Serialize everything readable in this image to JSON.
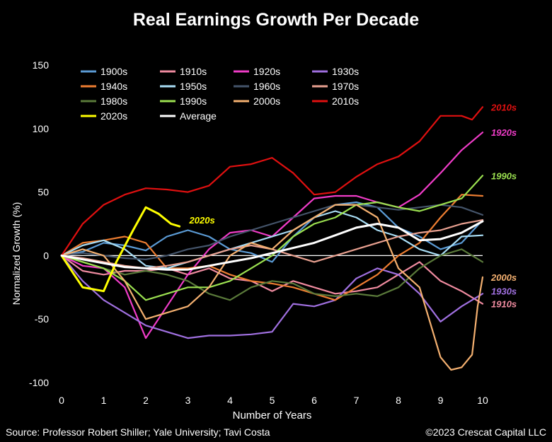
{
  "page": {
    "title": "Real Earnings Growth Per Decade",
    "source": "Source: Professor Robert Shiller; Yale University; Tavi Costa",
    "copyright": "©2023 Crescat Capital LLC"
  },
  "chart_data": {
    "type": "line",
    "title": "Real Earnings Growth Per Decade",
    "xlabel": "Number of Years",
    "ylabel": "Normalized Growth (%)",
    "xlim": [
      0,
      10
    ],
    "ylim": [
      -100,
      150
    ],
    "xticks": [
      0,
      1,
      2,
      3,
      4,
      5,
      6,
      7,
      8,
      9,
      10
    ],
    "yticks": [
      -100,
      -50,
      0,
      50,
      100,
      150
    ],
    "grid": false,
    "legend": "top-left",
    "end_labels": [
      {
        "text": "2010s",
        "series": "2010s",
        "y": 117
      },
      {
        "text": "1920s",
        "series": "1920s",
        "y": 97
      },
      {
        "text": "1990s",
        "series": "1990s",
        "y": 63
      },
      {
        "text": "2020s",
        "series": "2020s",
        "y": 28,
        "x": 2.9
      },
      {
        "text": "2000s",
        "series": "2000s",
        "y": -17
      },
      {
        "text": "1930s",
        "series": "1930s",
        "y": -28
      },
      {
        "text": "1910s",
        "series": "1910s",
        "y": -38
      }
    ],
    "series": [
      {
        "name": "1900s",
        "color": "#5B9BD5",
        "points": [
          [
            0,
            0
          ],
          [
            0.5,
            3
          ],
          [
            1,
            10
          ],
          [
            1.5,
            8
          ],
          [
            2,
            4
          ],
          [
            2.5,
            15
          ],
          [
            3,
            20
          ],
          [
            3.5,
            15
          ],
          [
            4,
            5
          ],
          [
            4.5,
            2
          ],
          [
            5,
            -5
          ],
          [
            5.5,
            15
          ],
          [
            6,
            30
          ],
          [
            6.5,
            40
          ],
          [
            7,
            42
          ],
          [
            7.5,
            38
          ],
          [
            8,
            22
          ],
          [
            8.5,
            15
          ],
          [
            9,
            5
          ],
          [
            9.5,
            10
          ],
          [
            10,
            28
          ]
        ]
      },
      {
        "name": "1910s",
        "color": "#F08BA0",
        "points": [
          [
            0,
            0
          ],
          [
            0.5,
            -12
          ],
          [
            1,
            -15
          ],
          [
            1.5,
            -12
          ],
          [
            2,
            -12
          ],
          [
            2.5,
            -10
          ],
          [
            3,
            -15
          ],
          [
            3.5,
            -10
          ],
          [
            4,
            -18
          ],
          [
            4.5,
            -20
          ],
          [
            5,
            -28
          ],
          [
            5.5,
            -20
          ],
          [
            6,
            -25
          ],
          [
            6.5,
            -30
          ],
          [
            7,
            -28
          ],
          [
            7.5,
            -25
          ],
          [
            8,
            -15
          ],
          [
            8.5,
            -5
          ],
          [
            9,
            -20
          ],
          [
            9.5,
            -28
          ],
          [
            10,
            -38
          ]
        ]
      },
      {
        "name": "1920s",
        "color": "#F03CC8",
        "points": [
          [
            0,
            0
          ],
          [
            0.5,
            -8
          ],
          [
            1,
            -10
          ],
          [
            1.5,
            -25
          ],
          [
            2,
            -65
          ],
          [
            2.5,
            -40
          ],
          [
            3,
            -15
          ],
          [
            3.5,
            5
          ],
          [
            4,
            18
          ],
          [
            4.5,
            20
          ],
          [
            5,
            15
          ],
          [
            5.5,
            30
          ],
          [
            6,
            45
          ],
          [
            6.5,
            47
          ],
          [
            7,
            47
          ],
          [
            7.5,
            42
          ],
          [
            8,
            38
          ],
          [
            8.5,
            48
          ],
          [
            9,
            65
          ],
          [
            9.5,
            83
          ],
          [
            10,
            97
          ]
        ]
      },
      {
        "name": "1930s",
        "color": "#A070E0",
        "points": [
          [
            0,
            0
          ],
          [
            0.5,
            -20
          ],
          [
            1,
            -35
          ],
          [
            1.5,
            -45
          ],
          [
            2,
            -55
          ],
          [
            2.5,
            -60
          ],
          [
            3,
            -65
          ],
          [
            3.5,
            -63
          ],
          [
            4,
            -63
          ],
          [
            4.5,
            -62
          ],
          [
            5,
            -60
          ],
          [
            5.5,
            -38
          ],
          [
            6,
            -40
          ],
          [
            6.5,
            -35
          ],
          [
            7,
            -18
          ],
          [
            7.5,
            -10
          ],
          [
            8,
            -15
          ],
          [
            8.5,
            -30
          ],
          [
            9,
            -52
          ],
          [
            9.5,
            -40
          ],
          [
            10,
            -30
          ]
        ]
      },
      {
        "name": "1940s",
        "color": "#ED7D31",
        "points": [
          [
            0,
            0
          ],
          [
            0.5,
            10
          ],
          [
            1,
            12
          ],
          [
            1.5,
            15
          ],
          [
            2,
            10
          ],
          [
            2.5,
            -10
          ],
          [
            3,
            -10
          ],
          [
            3.5,
            -8
          ],
          [
            4,
            -15
          ],
          [
            4.5,
            -20
          ],
          [
            5,
            -22
          ],
          [
            5.5,
            -25
          ],
          [
            6,
            -30
          ],
          [
            6.5,
            -35
          ],
          [
            7,
            -25
          ],
          [
            7.5,
            -15
          ],
          [
            8,
            0
          ],
          [
            8.5,
            10
          ],
          [
            9,
            30
          ],
          [
            9.5,
            48
          ],
          [
            10,
            47
          ]
        ]
      },
      {
        "name": "1950s",
        "color": "#A8DDF5",
        "points": [
          [
            0,
            0
          ],
          [
            0.5,
            8
          ],
          [
            1,
            12
          ],
          [
            1.5,
            5
          ],
          [
            2,
            -8
          ],
          [
            2.5,
            -10
          ],
          [
            3,
            -5
          ],
          [
            3.5,
            0
          ],
          [
            4,
            5
          ],
          [
            4.5,
            10
          ],
          [
            5,
            15
          ],
          [
            5.5,
            20
          ],
          [
            6,
            30
          ],
          [
            6.5,
            35
          ],
          [
            7,
            30
          ],
          [
            7.5,
            20
          ],
          [
            8,
            15
          ],
          [
            8.5,
            5
          ],
          [
            9,
            0
          ],
          [
            9.5,
            15
          ],
          [
            10,
            16
          ]
        ]
      },
      {
        "name": "1960s",
        "color": "#44546A",
        "points": [
          [
            0,
            0
          ],
          [
            0.5,
            2
          ],
          [
            1,
            0
          ],
          [
            1.5,
            -2
          ],
          [
            2,
            -3
          ],
          [
            2.5,
            0
          ],
          [
            3,
            5
          ],
          [
            3.5,
            8
          ],
          [
            4,
            15
          ],
          [
            4.5,
            20
          ],
          [
            5,
            25
          ],
          [
            5.5,
            30
          ],
          [
            6,
            35
          ],
          [
            6.5,
            40
          ],
          [
            7,
            40
          ],
          [
            7.5,
            38
          ],
          [
            8,
            36
          ],
          [
            8.5,
            38
          ],
          [
            9,
            40
          ],
          [
            9.5,
            38
          ],
          [
            10,
            32
          ]
        ]
      },
      {
        "name": "1970s",
        "color": "#E8A090",
        "points": [
          [
            0,
            0
          ],
          [
            0.5,
            -2
          ],
          [
            1,
            -5
          ],
          [
            1.5,
            -8
          ],
          [
            2,
            -10
          ],
          [
            2.5,
            -8
          ],
          [
            3,
            -5
          ],
          [
            3.5,
            0
          ],
          [
            4,
            5
          ],
          [
            4.5,
            8
          ],
          [
            5,
            5
          ],
          [
            5.5,
            0
          ],
          [
            6,
            -5
          ],
          [
            6.5,
            0
          ],
          [
            7,
            5
          ],
          [
            7.5,
            10
          ],
          [
            8,
            15
          ],
          [
            8.5,
            18
          ],
          [
            9,
            20
          ],
          [
            9.5,
            25
          ],
          [
            10,
            28
          ]
        ]
      },
      {
        "name": "1980s",
        "color": "#5A7A3A",
        "points": [
          [
            0,
            0
          ],
          [
            0.5,
            -5
          ],
          [
            1,
            -10
          ],
          [
            1.5,
            -15
          ],
          [
            2,
            -12
          ],
          [
            2.5,
            -15
          ],
          [
            3,
            -20
          ],
          [
            3.5,
            -30
          ],
          [
            4,
            -35
          ],
          [
            4.5,
            -25
          ],
          [
            5,
            -20
          ],
          [
            5.5,
            -22
          ],
          [
            6,
            -30
          ],
          [
            6.5,
            -32
          ],
          [
            7,
            -30
          ],
          [
            7.5,
            -32
          ],
          [
            8,
            -25
          ],
          [
            8.5,
            -10
          ],
          [
            9,
            0
          ],
          [
            9.5,
            5
          ],
          [
            10,
            -5
          ]
        ]
      },
      {
        "name": "1990s",
        "color": "#9BE050",
        "points": [
          [
            0,
            0
          ],
          [
            0.5,
            -5
          ],
          [
            1,
            -10
          ],
          [
            1.5,
            -20
          ],
          [
            2,
            -35
          ],
          [
            2.5,
            -30
          ],
          [
            3,
            -25
          ],
          [
            3.5,
            -25
          ],
          [
            4,
            -20
          ],
          [
            4.5,
            -10
          ],
          [
            5,
            0
          ],
          [
            5.5,
            15
          ],
          [
            6,
            25
          ],
          [
            6.5,
            30
          ],
          [
            7,
            40
          ],
          [
            7.5,
            42
          ],
          [
            8,
            38
          ],
          [
            8.5,
            35
          ],
          [
            9,
            40
          ],
          [
            9.5,
            45
          ],
          [
            10,
            63
          ]
        ]
      },
      {
        "name": "2000s",
        "color": "#F4B070",
        "points": [
          [
            0,
            0
          ],
          [
            0.5,
            5
          ],
          [
            1,
            0
          ],
          [
            1.5,
            -20
          ],
          [
            2,
            -50
          ],
          [
            2.5,
            -45
          ],
          [
            3,
            -40
          ],
          [
            3.5,
            -25
          ],
          [
            4,
            0
          ],
          [
            4.5,
            10
          ],
          [
            5,
            5
          ],
          [
            5.5,
            20
          ],
          [
            6,
            30
          ],
          [
            6.5,
            40
          ],
          [
            7,
            40
          ],
          [
            7.5,
            30
          ],
          [
            8,
            -10
          ],
          [
            8.5,
            -25
          ],
          [
            9,
            -80
          ],
          [
            9.25,
            -90
          ],
          [
            9.5,
            -88
          ],
          [
            9.75,
            -78
          ],
          [
            9.88,
            -40
          ],
          [
            10,
            -17
          ]
        ]
      },
      {
        "name": "2010s",
        "color": "#E01010",
        "points": [
          [
            0,
            0
          ],
          [
            0.5,
            25
          ],
          [
            1,
            40
          ],
          [
            1.5,
            48
          ],
          [
            2,
            53
          ],
          [
            2.5,
            52
          ],
          [
            3,
            50
          ],
          [
            3.5,
            55
          ],
          [
            4,
            70
          ],
          [
            4.5,
            72
          ],
          [
            5,
            77
          ],
          [
            5.5,
            65
          ],
          [
            6,
            48
          ],
          [
            6.5,
            50
          ],
          [
            7,
            62
          ],
          [
            7.5,
            72
          ],
          [
            8,
            78
          ],
          [
            8.5,
            90
          ],
          [
            9,
            110
          ],
          [
            9.5,
            110
          ],
          [
            9.75,
            107
          ],
          [
            10,
            117
          ]
        ]
      },
      {
        "name": "2020s",
        "color": "#FFFF00",
        "points": [
          [
            0,
            0
          ],
          [
            0.3,
            -15
          ],
          [
            0.5,
            -25
          ],
          [
            1,
            -28
          ],
          [
            1.3,
            -5
          ],
          [
            1.7,
            20
          ],
          [
            2,
            38
          ],
          [
            2.3,
            33
          ],
          [
            2.6,
            25
          ],
          [
            2.8,
            23
          ]
        ]
      },
      {
        "name": "Average",
        "color": "#FFFFFF",
        "points": [
          [
            0,
            0
          ],
          [
            0.5,
            -3
          ],
          [
            1,
            -6
          ],
          [
            1.5,
            -9
          ],
          [
            2,
            -10
          ],
          [
            2.5,
            -11
          ],
          [
            3,
            -11
          ],
          [
            3.5,
            -8
          ],
          [
            4,
            -5
          ],
          [
            4.5,
            -2
          ],
          [
            5,
            2
          ],
          [
            5.5,
            6
          ],
          [
            6,
            10
          ],
          [
            6.5,
            16
          ],
          [
            7,
            22
          ],
          [
            7.5,
            25
          ],
          [
            8,
            22
          ],
          [
            8.5,
            12
          ],
          [
            9,
            13
          ],
          [
            9.5,
            18
          ],
          [
            10,
            27
          ]
        ]
      }
    ]
  }
}
